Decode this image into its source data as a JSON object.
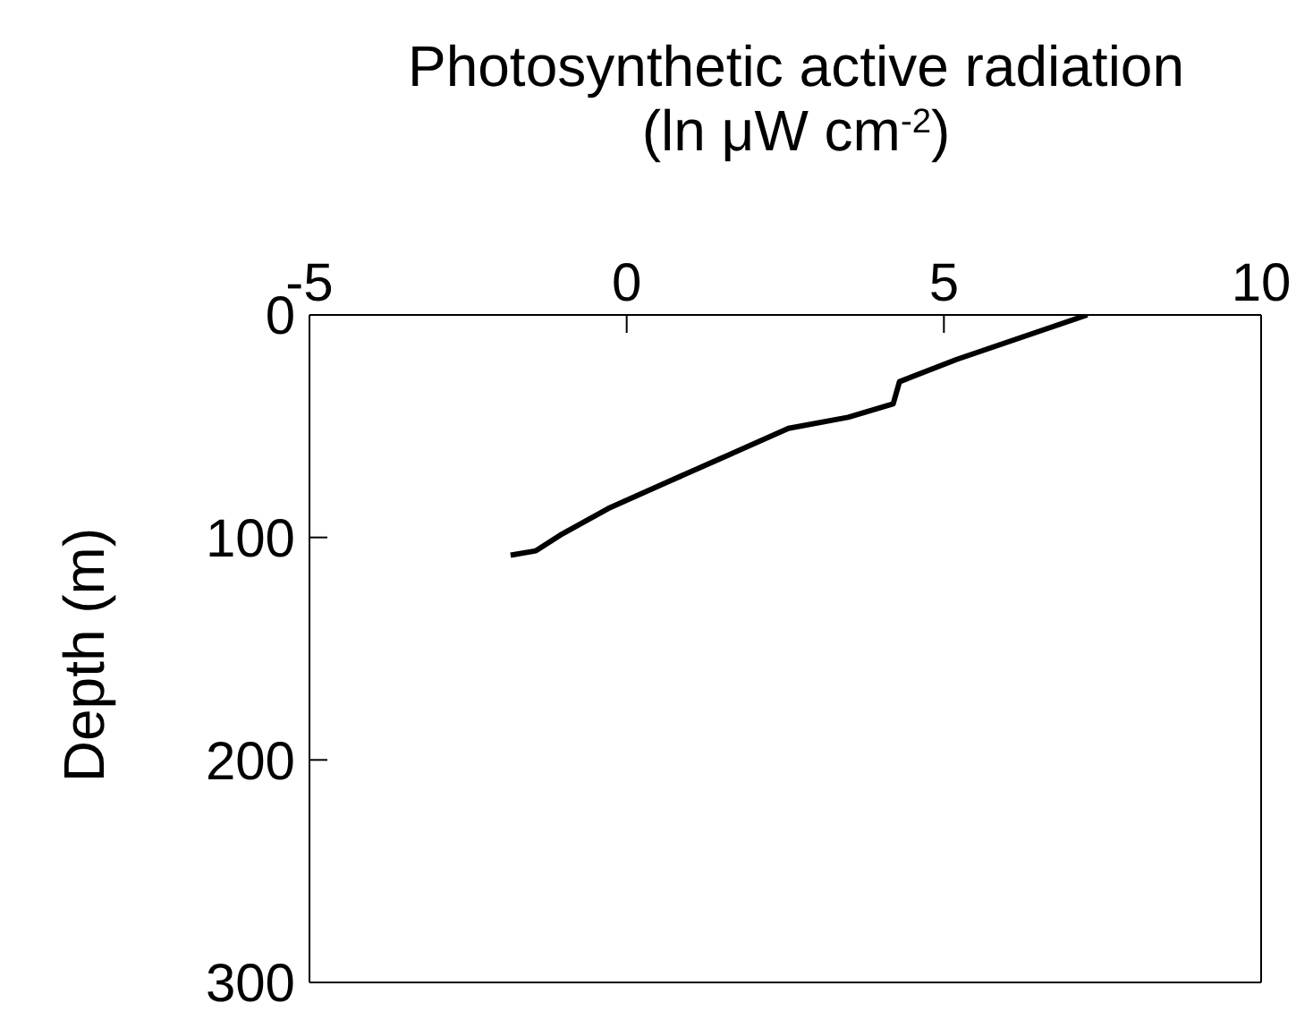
{
  "chart_data": {
    "type": "line",
    "xlabel": "Photosynthetic active radiation\n(ln μW cm$^{-2}$)",
    "ylabel": "Depth (m)",
    "x": [
      7.26,
      5.2,
      4.3,
      4.2,
      3.49,
      2.55,
      1.6,
      0.65,
      -0.29,
      -1.05,
      -1.43,
      -1.83
    ],
    "series": [
      {
        "color": "#000000",
        "values": [
          0,
          20,
          30,
          40,
          46,
          51,
          63,
          75,
          87,
          99,
          106,
          108
        ]
      }
    ],
    "xlim": [
      -5,
      10
    ],
    "xticks": [
      -5,
      0,
      5,
      10
    ],
    "ylim": [
      300,
      0
    ],
    "yticks": [
      0,
      100,
      200,
      300
    ],
    "marker": "none",
    "line_style": "solid"
  }
}
